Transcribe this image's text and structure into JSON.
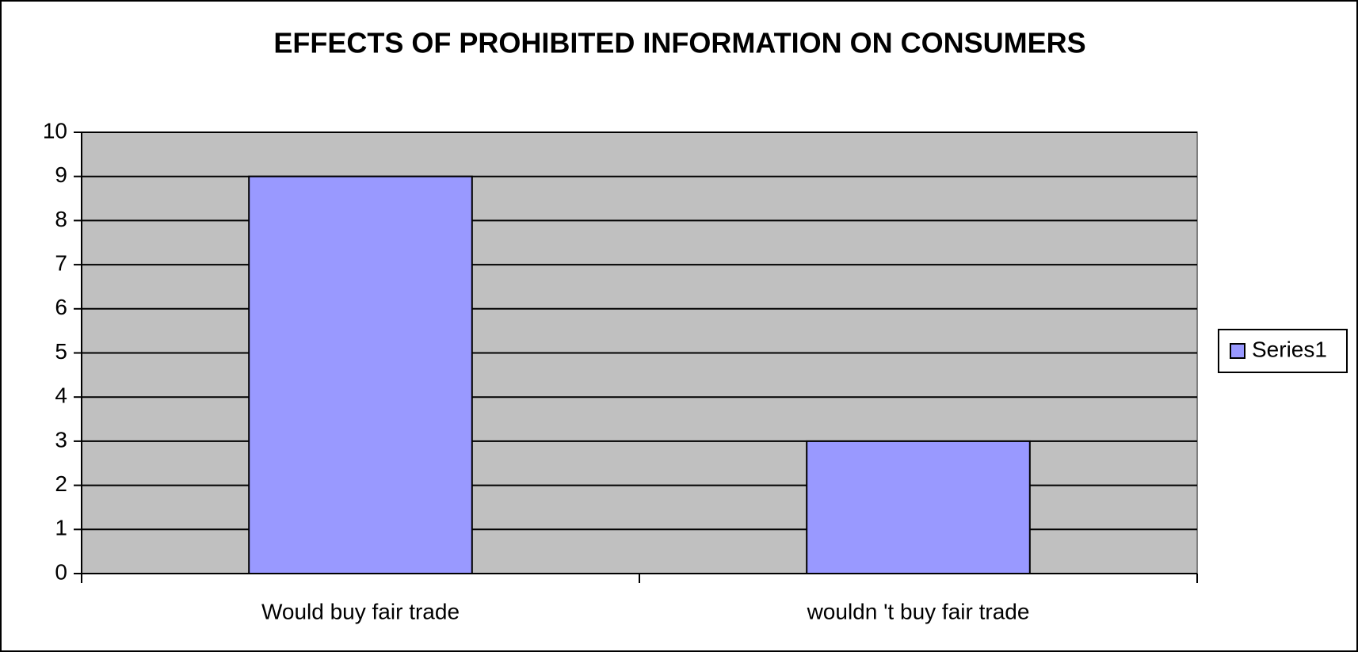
{
  "chart_data": {
    "type": "bar",
    "title": "EFFECTS OF PROHIBITED INFORMATION ON CONSUMERS",
    "categories": [
      "Would buy fair trade",
      "wouldn 't buy fair trade"
    ],
    "series": [
      {
        "name": "Series1",
        "color": "#9999ff",
        "values": [
          9,
          3
        ]
      }
    ],
    "ylim": [
      0,
      10
    ],
    "yticks": [
      0,
      1,
      2,
      3,
      4,
      5,
      6,
      7,
      8,
      9,
      10
    ],
    "grid": true,
    "legend": "right",
    "plot_background": "#c0c0c0"
  }
}
